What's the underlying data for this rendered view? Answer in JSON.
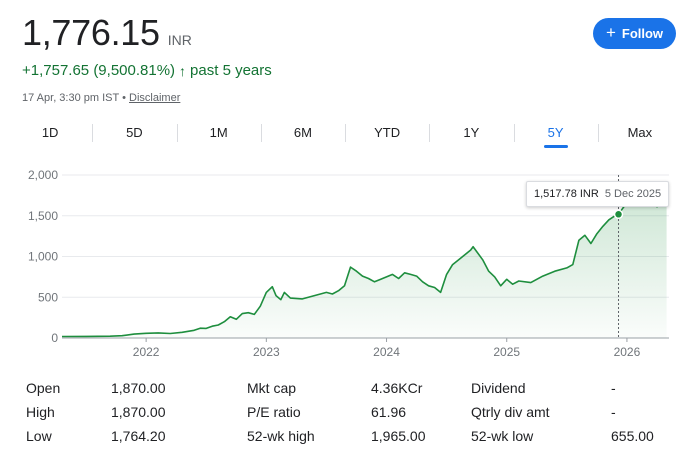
{
  "quote": {
    "price": "1,776.15",
    "currency": "INR",
    "change": "+1,757.65 (9,500.81%)",
    "change_arrow": "↑",
    "period": "past 5 years",
    "timestamp": "17 Apr, 3:30 pm IST",
    "separator": "•",
    "disclaimer": "Disclaimer"
  },
  "follow_button": {
    "label": "Follow",
    "icon": "plus-icon"
  },
  "tabs": [
    "1D",
    "5D",
    "1M",
    "6M",
    "YTD",
    "1Y",
    "5Y",
    "Max"
  ],
  "active_tab": "5Y",
  "tooltip": {
    "value": "1,517.78 INR",
    "date": "5 Dec 2025"
  },
  "colors": {
    "line": "#1e8e3e",
    "accent": "#1a73e8",
    "positive": "#137333"
  },
  "chart_data": {
    "type": "area",
    "y_ticks": [
      "2,000",
      "1,500",
      "1,000",
      "500",
      "0"
    ],
    "x_ticks": [
      "2022",
      "2023",
      "2024",
      "2025",
      "2026"
    ],
    "ylim": [
      0,
      2000
    ],
    "xlim": [
      2021.3,
      2026.35
    ],
    "grid": true,
    "series": [
      {
        "points": [
          [
            2021.3,
            18
          ],
          [
            2021.5,
            20
          ],
          [
            2021.7,
            22
          ],
          [
            2021.8,
            28
          ],
          [
            2021.9,
            48
          ],
          [
            2022.0,
            58
          ],
          [
            2022.1,
            62
          ],
          [
            2022.2,
            55
          ],
          [
            2022.3,
            70
          ],
          [
            2022.4,
            95
          ],
          [
            2022.45,
            120
          ],
          [
            2022.5,
            118
          ],
          [
            2022.55,
            145
          ],
          [
            2022.6,
            160
          ],
          [
            2022.65,
            200
          ],
          [
            2022.7,
            260
          ],
          [
            2022.75,
            230
          ],
          [
            2022.8,
            300
          ],
          [
            2022.85,
            310
          ],
          [
            2022.9,
            290
          ],
          [
            2022.95,
            390
          ],
          [
            2023.0,
            560
          ],
          [
            2023.05,
            630
          ],
          [
            2023.08,
            520
          ],
          [
            2023.12,
            470
          ],
          [
            2023.15,
            560
          ],
          [
            2023.2,
            490
          ],
          [
            2023.3,
            480
          ],
          [
            2023.4,
            520
          ],
          [
            2023.5,
            560
          ],
          [
            2023.55,
            540
          ],
          [
            2023.6,
            580
          ],
          [
            2023.65,
            640
          ],
          [
            2023.7,
            870
          ],
          [
            2023.75,
            820
          ],
          [
            2023.8,
            760
          ],
          [
            2023.85,
            730
          ],
          [
            2023.9,
            690
          ],
          [
            2024.0,
            750
          ],
          [
            2024.05,
            780
          ],
          [
            2024.1,
            730
          ],
          [
            2024.15,
            800
          ],
          [
            2024.2,
            780
          ],
          [
            2024.25,
            760
          ],
          [
            2024.3,
            690
          ],
          [
            2024.35,
            640
          ],
          [
            2024.4,
            620
          ],
          [
            2024.45,
            560
          ],
          [
            2024.5,
            780
          ],
          [
            2024.55,
            900
          ],
          [
            2024.6,
            960
          ],
          [
            2024.65,
            1020
          ],
          [
            2024.7,
            1080
          ],
          [
            2024.72,
            1120
          ],
          [
            2024.75,
            1060
          ],
          [
            2024.8,
            960
          ],
          [
            2024.85,
            820
          ],
          [
            2024.9,
            750
          ],
          [
            2024.95,
            640
          ],
          [
            2025.0,
            720
          ],
          [
            2025.05,
            660
          ],
          [
            2025.1,
            700
          ],
          [
            2025.2,
            680
          ],
          [
            2025.3,
            760
          ],
          [
            2025.4,
            820
          ],
          [
            2025.5,
            860
          ],
          [
            2025.55,
            900
          ],
          [
            2025.6,
            1200
          ],
          [
            2025.65,
            1260
          ],
          [
            2025.7,
            1160
          ],
          [
            2025.75,
            1280
          ],
          [
            2025.8,
            1370
          ],
          [
            2025.85,
            1450
          ],
          [
            2025.9,
            1500
          ],
          [
            2025.93,
            1517.78
          ],
          [
            2025.96,
            1580
          ],
          [
            2026.0,
            1660
          ],
          [
            2026.05,
            1620
          ],
          [
            2026.1,
            1680
          ],
          [
            2026.15,
            1650
          ],
          [
            2026.2,
            1700
          ],
          [
            2026.25,
            1610
          ],
          [
            2026.3,
            1680
          ],
          [
            2026.33,
            1776.15
          ]
        ]
      }
    ],
    "highlight": {
      "x": 2025.93,
      "y": 1517.78
    }
  },
  "stats": [
    {
      "l1": "Open",
      "v1": "1,870.00",
      "l2": "Mkt cap",
      "v2": "4.36KCr",
      "l3": "Dividend",
      "v3": "-"
    },
    {
      "l1": "High",
      "v1": "1,870.00",
      "l2": "P/E ratio",
      "v2": "61.96",
      "l3": "Qtrly div amt",
      "v3": "-"
    },
    {
      "l1": "Low",
      "v1": "1,764.20",
      "l2": "52-wk high",
      "v2": "1,965.00",
      "l3": "52-wk low",
      "v3": "655.00"
    }
  ]
}
